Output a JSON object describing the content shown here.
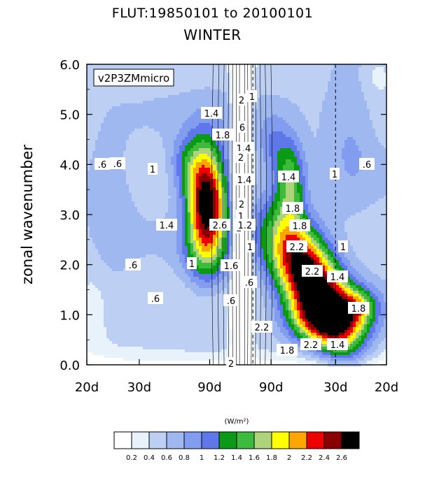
{
  "title": "FLUT:19850101 to 20100101",
  "subtitle": "WINTER",
  "chart_data": {
    "type": "heatmap",
    "ylabel": "zonal wavenumber",
    "model_label": "v2P3ZMmicro",
    "units": "(W/m²)",
    "x_tick_labels": [
      "20d",
      "30d",
      "90d",
      "90d",
      "30d",
      "20d"
    ],
    "y_tick_labels": [
      "0.0",
      "1.0",
      "2.0",
      "3.0",
      "4.0",
      "5.0",
      "6.0"
    ],
    "ylim": [
      0,
      6
    ],
    "contour_levels": [
      0.2,
      0.4,
      0.6,
      0.8,
      1,
      1.2,
      1.4,
      1.6,
      1.8,
      2,
      2.2,
      2.4,
      2.6
    ],
    "colorbar_labels": [
      "0.2",
      "0.4",
      "0.6",
      "0.8",
      "1",
      "1.2",
      "1.4",
      "1.6",
      "1.8",
      "2",
      "2.2",
      "2.4",
      "2.6"
    ],
    "colors": [
      "#ffffff",
      "#e8f2fb",
      "#bdd0f4",
      "#9fb8ef",
      "#829df0",
      "#5e78ea",
      "#0a9a16",
      "#3dbb3d",
      "#aed37b",
      "#ffff00",
      "#ffa500",
      "#ee0000",
      "#880000",
      "#000000"
    ],
    "contour_labels": [
      "1.4",
      "1.8",
      "2",
      "1",
      "6",
      "2",
      "1",
      "1.4",
      "1.4",
      "1.8",
      "1.8",
      "2.2",
      "2.2",
      "1",
      "1.4",
      "1.8",
      "1.4",
      "2.2",
      "2.2",
      "1.8",
      "1.4",
      ".6",
      ".6",
      "1",
      ".6",
      "1.4",
      "1",
      ".6",
      "1",
      ".6",
      "2.6",
      "1",
      "2",
      "1.6",
      ".6",
      "2",
      "1.2",
      ".6",
      "1"
    ],
    "dashed_lines_at": [
      "90d",
      "30d"
    ]
  }
}
